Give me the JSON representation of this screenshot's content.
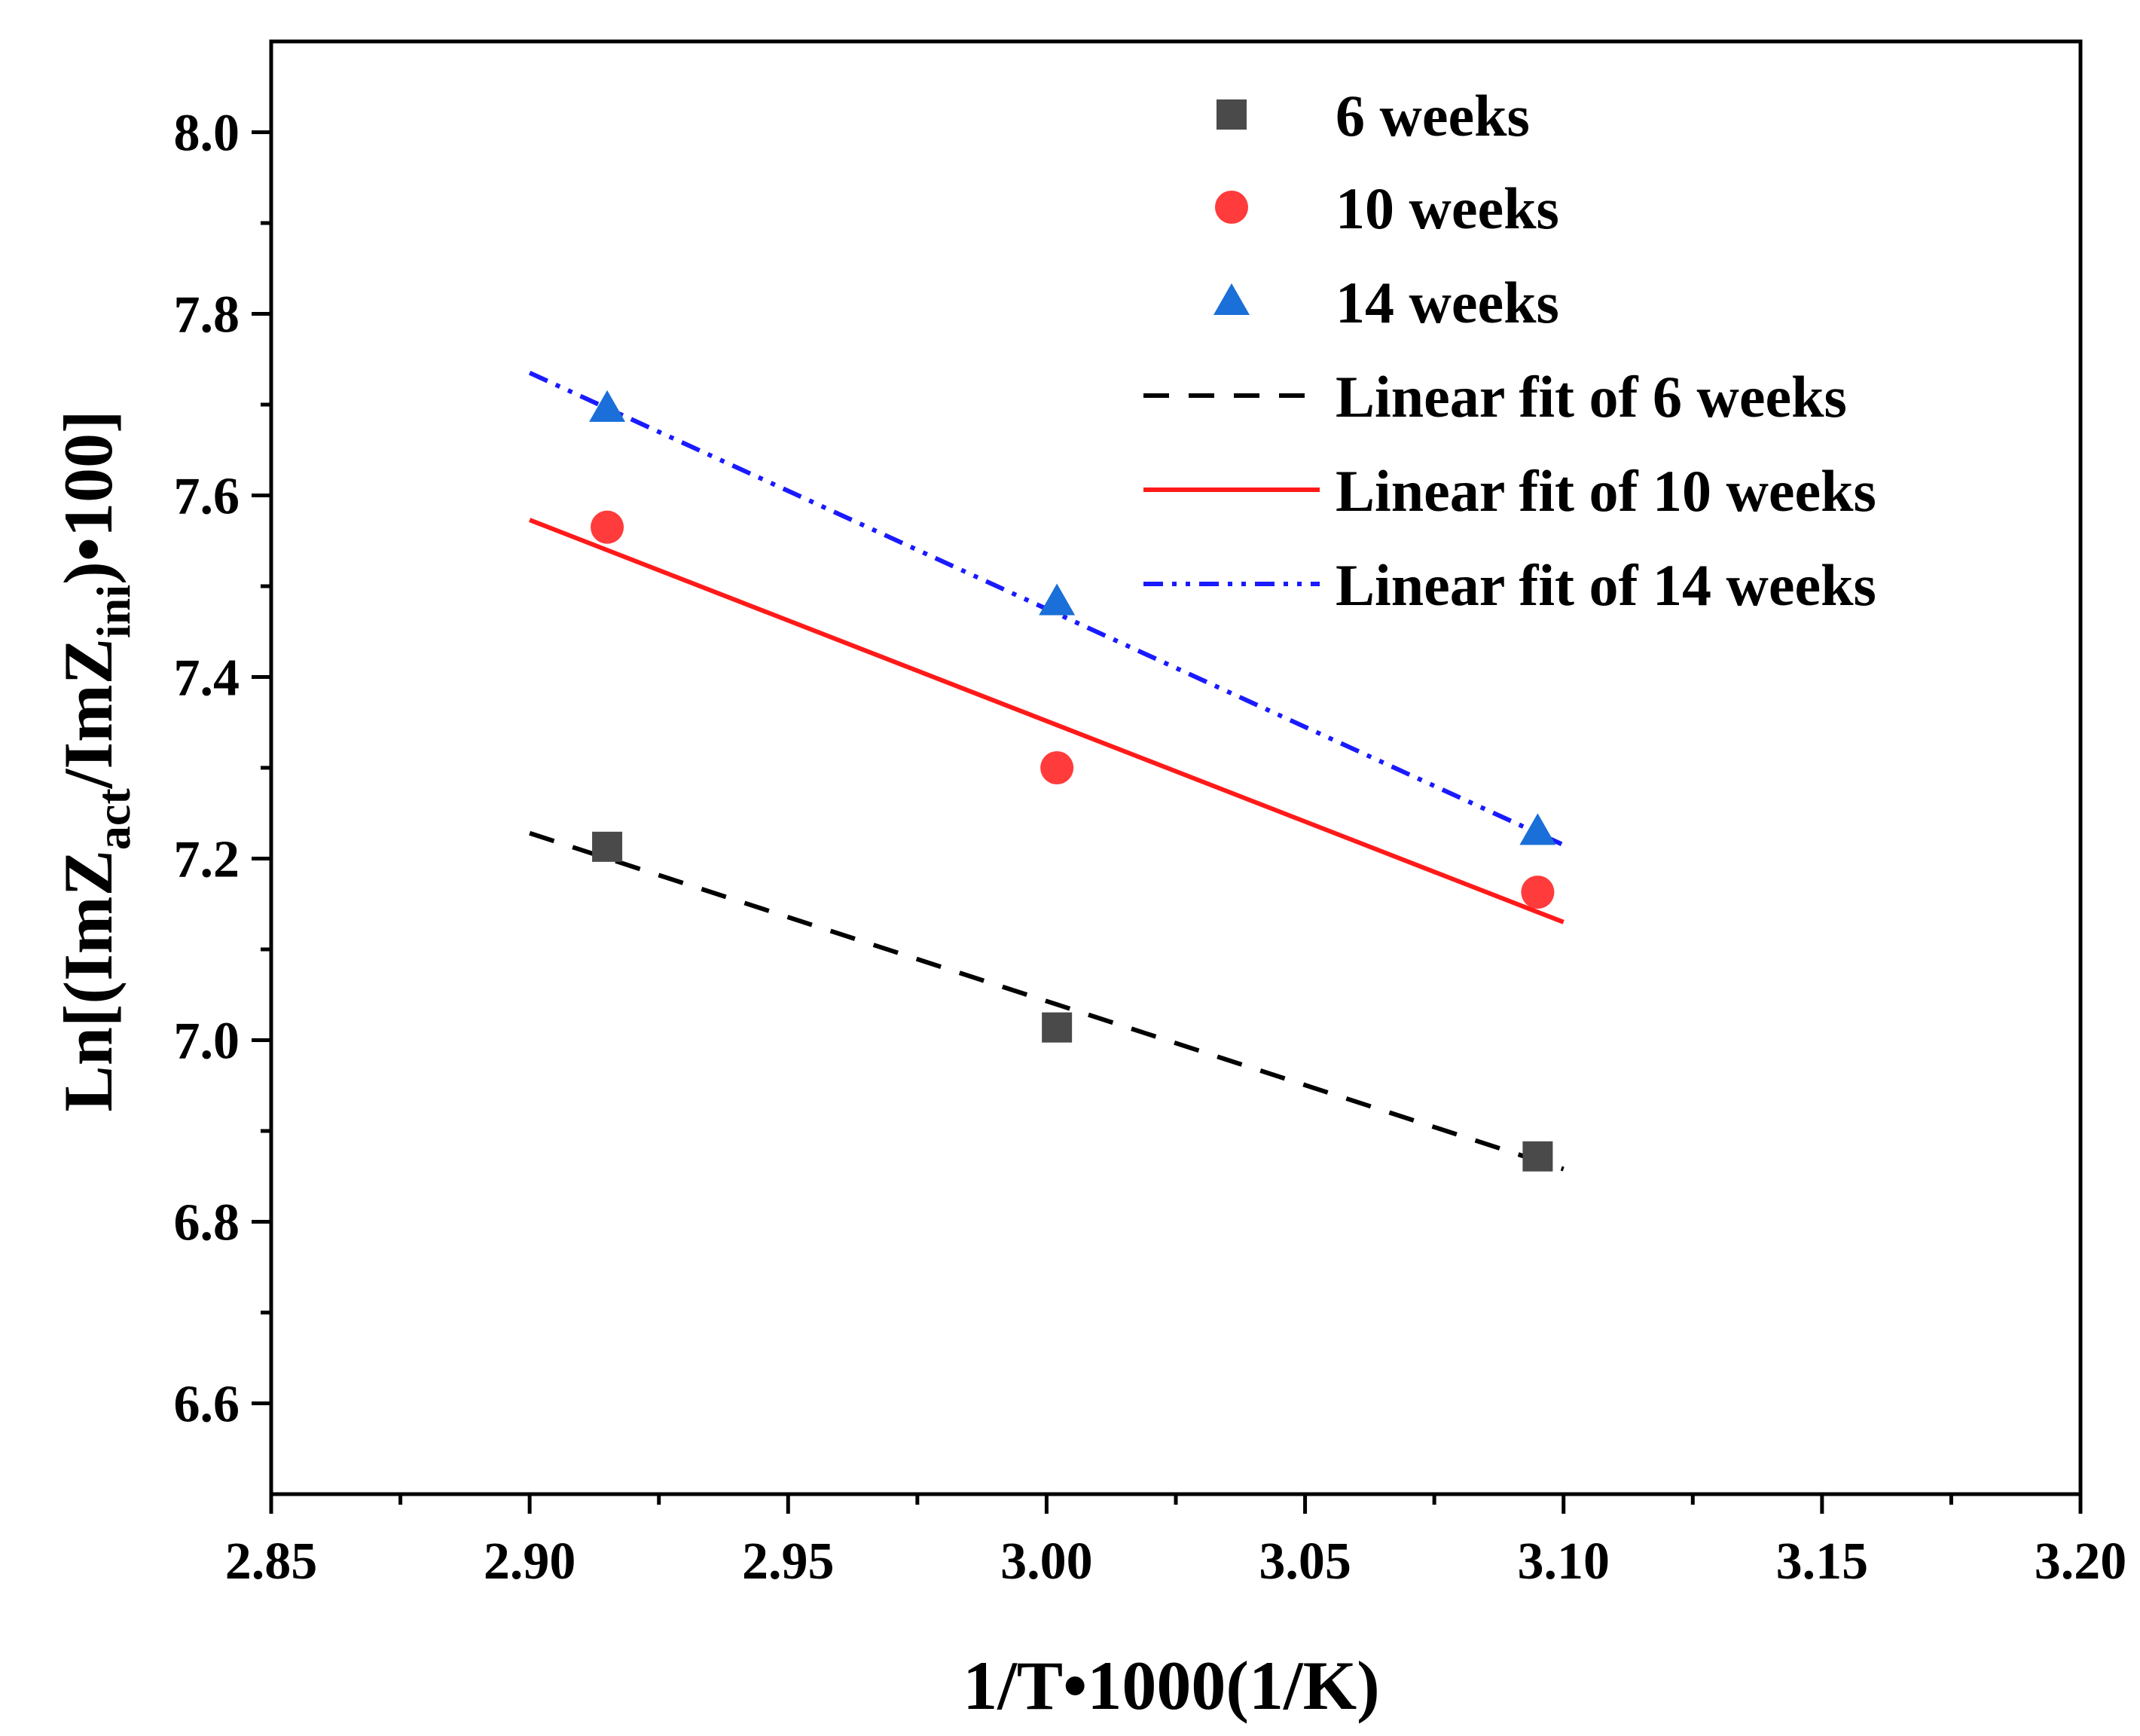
{
  "chart_data": {
    "type": "scatter",
    "xlabel": "1/T•1000(1/K)",
    "ylabel": {
      "prefix": "Ln[(ImZ",
      "sub1": "act",
      "middle": "/ImZ",
      "sub2": "ini",
      "suffix": ")•100]"
    },
    "xlim": [
      2.85,
      3.2
    ],
    "ylim": [
      6.5,
      8.1
    ],
    "x_ticks": [
      "2.85",
      "2.90",
      "2.95",
      "3.00",
      "3.05",
      "3.10",
      "3.15",
      "3.20"
    ],
    "y_ticks": [
      "6.6",
      "6.8",
      "7.0",
      "7.2",
      "7.4",
      "7.6",
      "7.8",
      "8.0"
    ],
    "legend_position": "top-right",
    "series": [
      {
        "name": "6 weeks",
        "marker": "square",
        "color": "#4a4a4a",
        "x": [
          2.915,
          3.002,
          3.095
        ],
        "y": [
          7.213,
          7.014,
          6.872
        ]
      },
      {
        "name": "10 weeks",
        "marker": "circle",
        "color": "#ff3b3b",
        "x": [
          2.915,
          3.002,
          3.095
        ],
        "y": [
          7.565,
          7.3,
          7.163
        ]
      },
      {
        "name": "14 weeks",
        "marker": "triangle",
        "color": "#1a6fd8",
        "x": [
          2.915,
          3.002,
          3.095
        ],
        "y": [
          7.696,
          7.483,
          7.23
        ]
      }
    ],
    "fits": [
      {
        "name": "Linear fit of 6 weeks",
        "style": "dash",
        "color": "#000000",
        "x": [
          2.9,
          3.1
        ],
        "y": [
          7.228,
          6.858
        ]
      },
      {
        "name": "Linear fit of 10 weeks",
        "style": "solid",
        "color": "#ff1a1a",
        "x": [
          2.9,
          3.1
        ],
        "y": [
          7.573,
          7.13
        ]
      },
      {
        "name": "Linear fit of 14 weeks",
        "style": "dashdotdot",
        "color": "#1a1aff",
        "x": [
          2.9,
          3.1
        ],
        "y": [
          7.735,
          7.215
        ]
      }
    ]
  }
}
